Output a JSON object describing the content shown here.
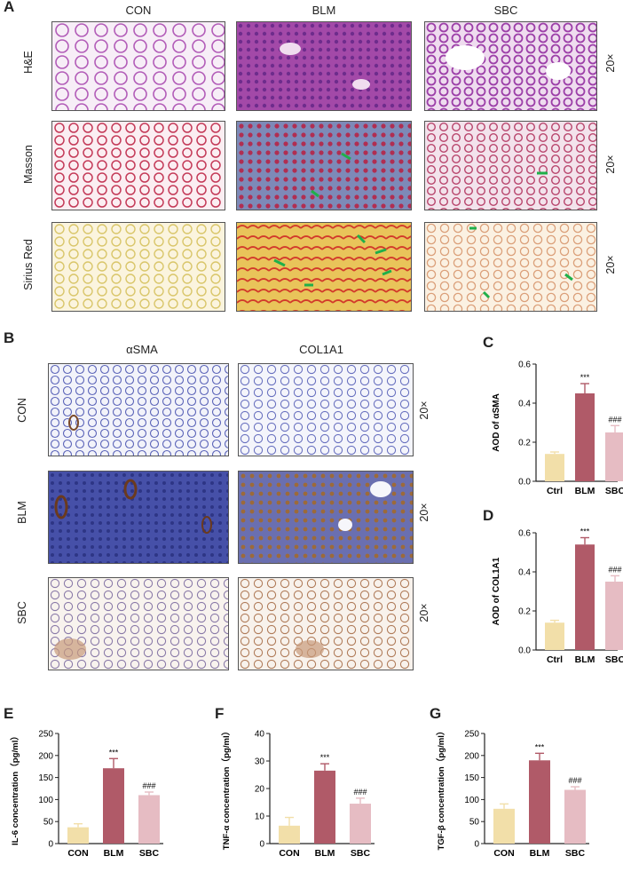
{
  "panel_A": {
    "letter": "A",
    "columns": [
      "CON",
      "BLM",
      "SBC"
    ],
    "rows": [
      {
        "label": "H&E",
        "mag": "20×"
      },
      {
        "label": "Masson",
        "mag": "20×"
      },
      {
        "label": "Sirius Red",
        "mag": "20×"
      }
    ]
  },
  "panel_B": {
    "letter": "B",
    "columns": [
      "αSMA",
      "COL1A1"
    ],
    "rows": [
      {
        "label": "CON",
        "mag": "20×"
      },
      {
        "label": "BLM",
        "mag": "20×"
      },
      {
        "label": "SBC",
        "mag": "20×"
      }
    ]
  },
  "chart_data": [
    {
      "id": "C",
      "letter": "C",
      "type": "bar",
      "categories": [
        "Ctrl",
        "BLM",
        "SBC"
      ],
      "values": [
        0.14,
        0.45,
        0.25
      ],
      "errors": [
        0.01,
        0.05,
        0.035
      ],
      "annotations": [
        "",
        "***",
        "###"
      ],
      "ylabel": "AOD of αSMA",
      "ylim": [
        0,
        0.6
      ],
      "yticks": [
        0.0,
        0.2,
        0.4,
        0.6
      ],
      "colors": [
        "#f2dfa9",
        "#b05a68",
        "#e6bcc3"
      ]
    },
    {
      "id": "D",
      "letter": "D",
      "type": "bar",
      "categories": [
        "Ctrl",
        "BLM",
        "SBC"
      ],
      "values": [
        0.14,
        0.54,
        0.35
      ],
      "errors": [
        0.012,
        0.035,
        0.03
      ],
      "annotations": [
        "",
        "***",
        "###"
      ],
      "ylabel": "AOD of COL1A1",
      "ylim": [
        0,
        0.6
      ],
      "yticks": [
        0.0,
        0.2,
        0.4,
        0.6
      ],
      "colors": [
        "#f2dfa9",
        "#b05a68",
        "#e6bcc3"
      ]
    },
    {
      "id": "E",
      "letter": "E",
      "type": "bar",
      "categories": [
        "CON",
        "BLM",
        "SBC"
      ],
      "values": [
        37,
        171,
        110
      ],
      "errors": [
        8,
        22,
        7
      ],
      "annotations": [
        "",
        "***",
        "###"
      ],
      "ylabel": "IL-6 concentration（pg/ml）",
      "ylim": [
        0,
        250
      ],
      "yticks": [
        0,
        50,
        100,
        150,
        200,
        250
      ],
      "colors": [
        "#f2dfa9",
        "#b05a68",
        "#e6bcc3"
      ]
    },
    {
      "id": "F",
      "letter": "F",
      "type": "bar",
      "categories": [
        "CON",
        "BLM",
        "SBC"
      ],
      "values": [
        6.5,
        26.5,
        14.5
      ],
      "errors": [
        3,
        2.5,
        2
      ],
      "annotations": [
        "",
        "***",
        "###"
      ],
      "ylabel": "TNF-α concentration（pg/ml）",
      "ylim": [
        0,
        40
      ],
      "yticks": [
        0,
        10,
        20,
        30,
        40
      ],
      "colors": [
        "#f2dfa9",
        "#b05a68",
        "#e6bcc3"
      ]
    },
    {
      "id": "G",
      "letter": "G",
      "type": "bar",
      "categories": [
        "CON",
        "BLM",
        "SBC"
      ],
      "values": [
        79,
        189,
        122
      ],
      "errors": [
        11,
        16,
        7
      ],
      "annotations": [
        "",
        "***",
        "###"
      ],
      "ylabel": "TGF-β concentration（pg/ml）",
      "ylim": [
        0,
        250
      ],
      "yticks": [
        0,
        50,
        100,
        150,
        200,
        250
      ],
      "colors": [
        "#f2dfa9",
        "#b05a68",
        "#e6bcc3"
      ]
    }
  ]
}
